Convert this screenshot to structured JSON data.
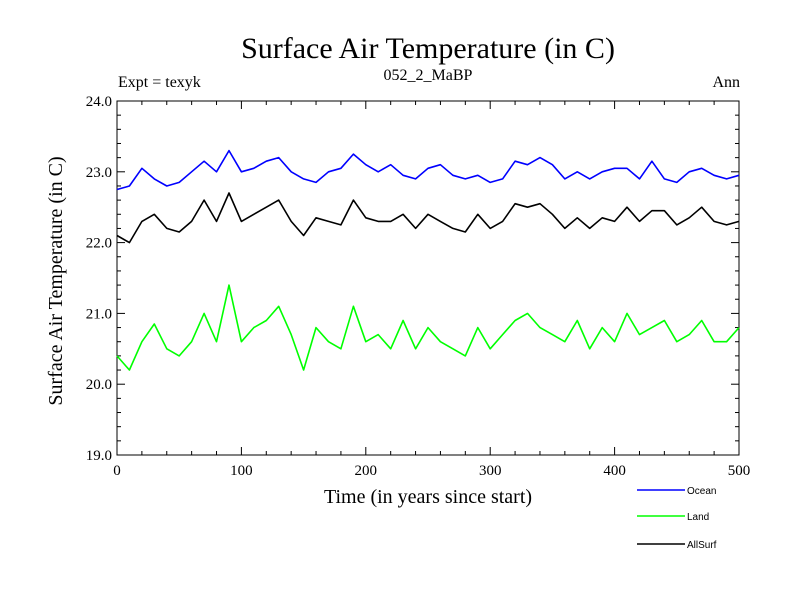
{
  "chart_data": {
    "type": "line",
    "title": "Surface Air Temperature (in C)",
    "subtitle": "052_2_MaBP",
    "left_label": "Expt = texyk",
    "right_label": "Ann",
    "xlabel": "Time (in years since start)",
    "ylabel": "Surface Air Temperature (in C)",
    "xlim": [
      0,
      500
    ],
    "ylim": [
      19.0,
      24.0
    ],
    "xticks": [
      "0",
      "100",
      "200",
      "300",
      "400",
      "500"
    ],
    "yticks": [
      "19.0",
      "20.0",
      "21.0",
      "22.0",
      "23.0",
      "24.0"
    ],
    "grid": false,
    "legend_position": "bottom-right",
    "series": [
      {
        "name": "Ocean",
        "color": "#0000ff",
        "x": [
          0,
          10,
          20,
          30,
          40,
          50,
          60,
          70,
          80,
          90,
          100,
          110,
          120,
          130,
          140,
          150,
          160,
          170,
          180,
          190,
          200,
          210,
          220,
          230,
          240,
          250,
          260,
          270,
          280,
          290,
          300,
          310,
          320,
          330,
          340,
          350,
          360,
          370,
          380,
          390,
          400,
          410,
          420,
          430,
          440,
          450,
          460,
          470,
          480,
          490,
          500
        ],
        "values": [
          22.75,
          22.8,
          23.05,
          22.9,
          22.8,
          22.85,
          23.0,
          23.15,
          23.0,
          23.3,
          23.0,
          23.05,
          23.15,
          23.2,
          23.0,
          22.9,
          22.85,
          23.0,
          23.05,
          23.25,
          23.1,
          23.0,
          23.1,
          22.95,
          22.9,
          23.05,
          23.1,
          22.95,
          22.9,
          22.95,
          22.85,
          22.9,
          23.15,
          23.1,
          23.2,
          23.1,
          22.9,
          23.0,
          22.9,
          23.0,
          23.05,
          23.05,
          22.9,
          23.15,
          22.9,
          22.85,
          23.0,
          23.05,
          22.95,
          22.9,
          22.95
        ]
      },
      {
        "name": "Land",
        "color": "#00ff00",
        "x": [
          0,
          10,
          20,
          30,
          40,
          50,
          60,
          70,
          80,
          90,
          100,
          110,
          120,
          130,
          140,
          150,
          160,
          170,
          180,
          190,
          200,
          210,
          220,
          230,
          240,
          250,
          260,
          270,
          280,
          290,
          300,
          310,
          320,
          330,
          340,
          350,
          360,
          370,
          380,
          390,
          400,
          410,
          420,
          430,
          440,
          450,
          460,
          470,
          480,
          490,
          500
        ],
        "values": [
          20.4,
          20.2,
          20.6,
          20.85,
          20.5,
          20.4,
          20.6,
          21.0,
          20.6,
          21.4,
          20.6,
          20.8,
          20.9,
          21.1,
          20.7,
          20.2,
          20.8,
          20.6,
          20.5,
          21.1,
          20.6,
          20.7,
          20.5,
          20.9,
          20.5,
          20.8,
          20.6,
          20.5,
          20.4,
          20.8,
          20.5,
          20.7,
          20.9,
          21.0,
          20.8,
          20.7,
          20.6,
          20.9,
          20.5,
          20.8,
          20.6,
          21.0,
          20.7,
          20.8,
          20.9,
          20.6,
          20.7,
          20.9,
          20.6,
          20.6,
          20.8
        ]
      },
      {
        "name": "AllSurf",
        "color": "#000000",
        "x": [
          0,
          10,
          20,
          30,
          40,
          50,
          60,
          70,
          80,
          90,
          100,
          110,
          120,
          130,
          140,
          150,
          160,
          170,
          180,
          190,
          200,
          210,
          220,
          230,
          240,
          250,
          260,
          270,
          280,
          290,
          300,
          310,
          320,
          330,
          340,
          350,
          360,
          370,
          380,
          390,
          400,
          410,
          420,
          430,
          440,
          450,
          460,
          470,
          480,
          490,
          500
        ],
        "values": [
          22.1,
          22.0,
          22.3,
          22.4,
          22.2,
          22.15,
          22.3,
          22.6,
          22.3,
          22.7,
          22.3,
          22.4,
          22.5,
          22.6,
          22.3,
          22.1,
          22.35,
          22.3,
          22.25,
          22.6,
          22.35,
          22.3,
          22.3,
          22.4,
          22.2,
          22.4,
          22.3,
          22.2,
          22.15,
          22.4,
          22.2,
          22.3,
          22.55,
          22.5,
          22.55,
          22.4,
          22.2,
          22.35,
          22.2,
          22.35,
          22.3,
          22.5,
          22.3,
          22.45,
          22.45,
          22.25,
          22.35,
          22.5,
          22.3,
          22.25,
          22.3
        ]
      }
    ]
  }
}
